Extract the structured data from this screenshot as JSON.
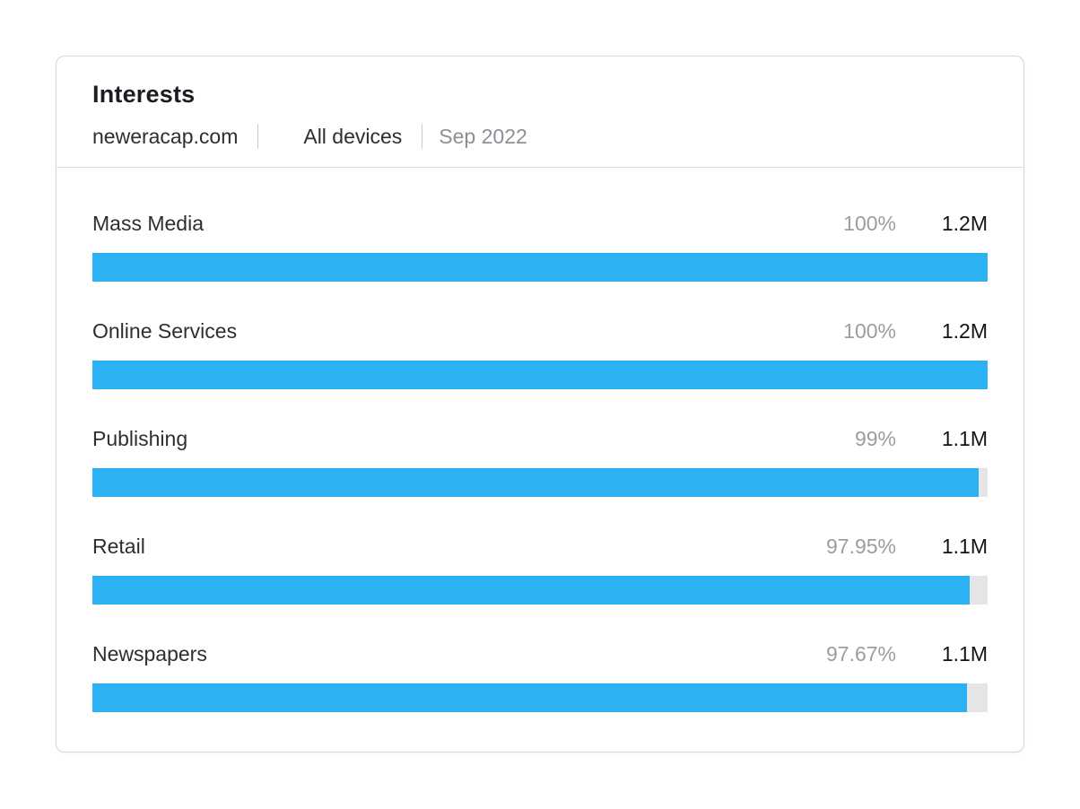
{
  "card": {
    "title": "Interests",
    "domain": "neweracap.com",
    "device_filter": "All devices",
    "period": "Sep 2022"
  },
  "chart_data": {
    "type": "bar",
    "orientation": "horizontal",
    "title": "Interests",
    "subtitle": "neweracap.com | All devices | Sep 2022",
    "categories": [
      "Mass Media",
      "Online Services",
      "Publishing",
      "Retail",
      "Newspapers"
    ],
    "series": [
      {
        "name": "audience_share_percent",
        "values": [
          100,
          100,
          99,
          97.95,
          97.67
        ]
      },
      {
        "name": "audience_size",
        "values": [
          "1.2M",
          "1.2M",
          "1.1M",
          "1.1M",
          "1.1M"
        ]
      }
    ],
    "percent_labels": [
      "100%",
      "100%",
      "99%",
      "97.95%",
      "97.67%"
    ],
    "value_labels": [
      "1.2M",
      "1.2M",
      "1.1M",
      "1.1M",
      "1.1M"
    ],
    "xlim": [
      0,
      100
    ],
    "grid": false,
    "legend": "none",
    "bar_color": "#2cb1f5",
    "track_color": "#e5e5e7"
  }
}
